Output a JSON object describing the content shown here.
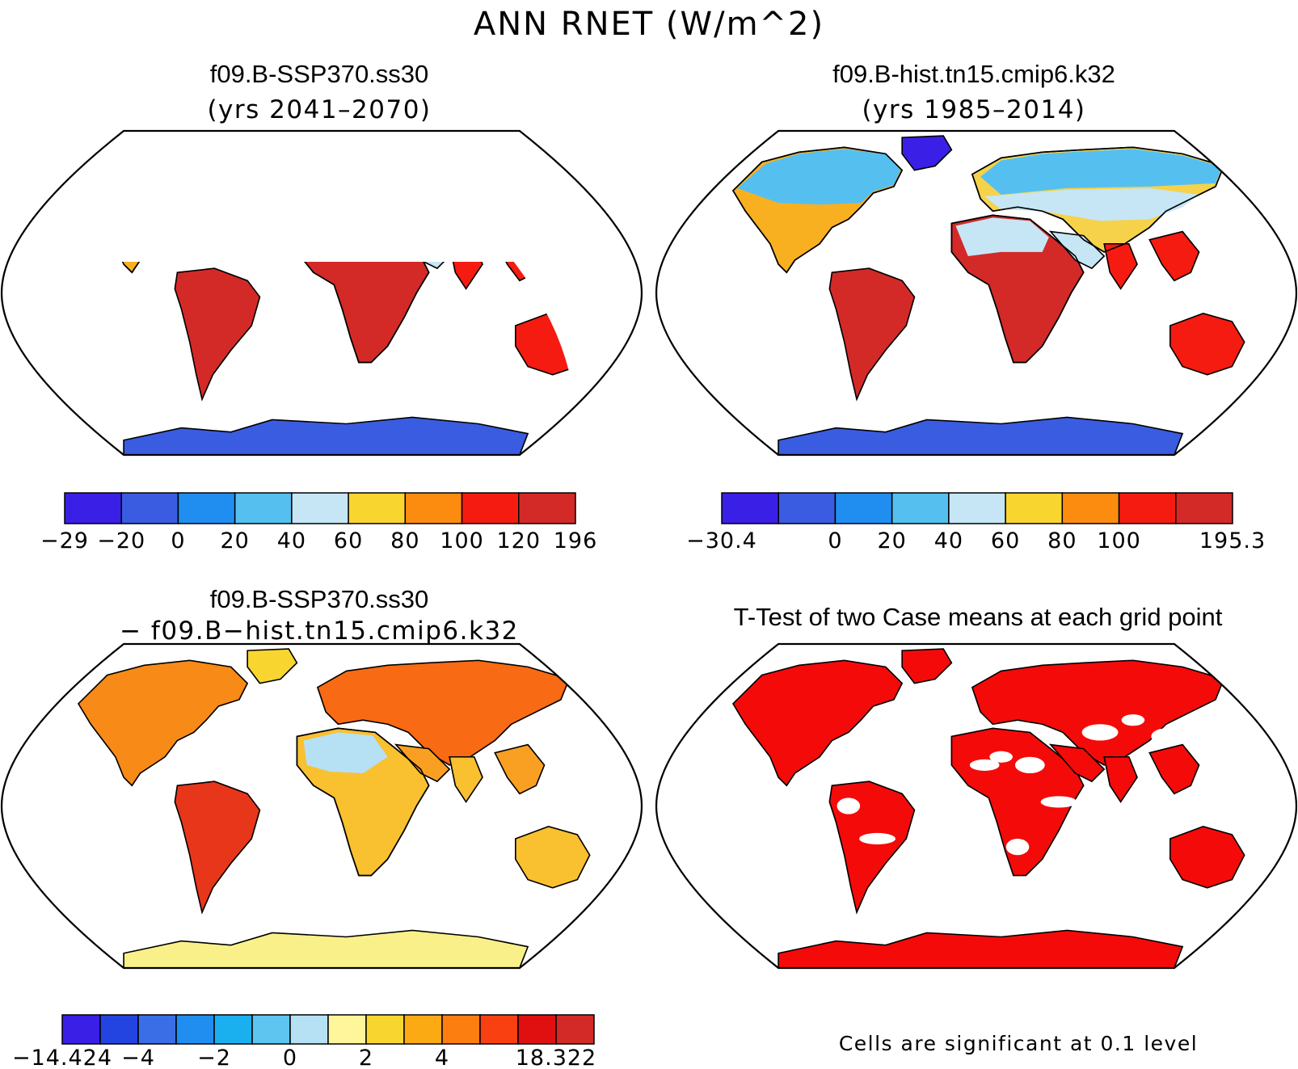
{
  "figure": {
    "title": "ANN RNET (W/m^2)",
    "note": "Cells are significant at 0.1 level"
  },
  "panels": [
    {
      "id": "case1",
      "title": "f09.B-SSP370.ss30",
      "subtitle": "(yrs 2041–2070)",
      "colorbar": {
        "colors": [
          "#3a1fe6",
          "#3a5ce0",
          "#1f8ef0",
          "#55c0f0",
          "#c6e6f6",
          "#f9d530",
          "#fc8c10",
          "#f51b10",
          "#d32a28"
        ],
        "labels": [
          "−29",
          "−20",
          "0",
          "20",
          "40",
          "60",
          "80",
          "100",
          "120",
          "196"
        ]
      }
    },
    {
      "id": "case2",
      "title": "f09.B-hist.tn15.cmip6.k32",
      "subtitle": "(yrs 1985–2014)",
      "colorbar": {
        "colors": [
          "#3a1fe6",
          "#3a5ce0",
          "#1f8ef0",
          "#55c0f0",
          "#c6e6f6",
          "#f9d530",
          "#fc8c10",
          "#f51b10",
          "#d32a28"
        ],
        "labels": [
          "−30.4",
          "",
          "0",
          "20",
          "40",
          "60",
          "80",
          "100",
          "",
          "195.3"
        ]
      }
    },
    {
      "id": "diff",
      "title": "f09.B-SSP370.ss30",
      "subtitle": "− f09.B−hist.tn15.cmip6.k32",
      "colorbar": {
        "colors": [
          "#3a1fe6",
          "#2344e0",
          "#3a6ee6",
          "#1f8ef0",
          "#1ab0f0",
          "#5ec4f0",
          "#b6e0f4",
          "#fff59a",
          "#f9d530",
          "#fcaa14",
          "#fc7e10",
          "#f84010",
          "#e01010",
          "#d32a28"
        ],
        "labels": [
          "−14.424",
          "",
          "−4",
          "",
          "−2",
          "",
          "0",
          "",
          "2",
          "",
          "4",
          "",
          "",
          "18.322"
        ]
      }
    },
    {
      "id": "ttest",
      "title": "T-Test of two Case means at each grid point"
    }
  ]
}
